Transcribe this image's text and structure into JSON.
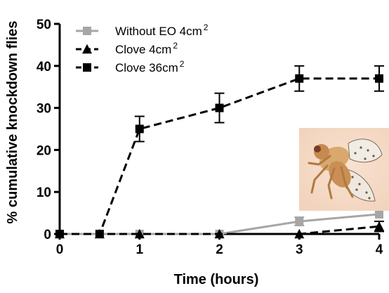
{
  "chart_data": {
    "type": "line",
    "xlabel": "Time (hours)",
    "ylabel": "% cumulative knockdown flies",
    "xlim": [
      0,
      4
    ],
    "ylim": [
      0,
      50
    ],
    "x_ticks": [
      0,
      1,
      2,
      3,
      4
    ],
    "y_ticks": [
      0,
      10,
      20,
      30,
      40,
      50
    ],
    "grid": false,
    "legend_position": "top-left",
    "series": [
      {
        "name": "Without EO 4cm",
        "name_superscript": "2",
        "color": "#a6a6a6",
        "line_style": "solid",
        "marker": "square",
        "x": [
          0,
          0.5,
          1,
          2,
          3,
          4
        ],
        "y": [
          0,
          0,
          0,
          0,
          3,
          4.7
        ],
        "error": [
          0,
          0,
          0,
          0,
          1,
          0
        ]
      },
      {
        "name": "Clove 4cm",
        "name_superscript": "2",
        "color": "#000000",
        "line_style": "dashed",
        "marker": "triangle",
        "x": [
          0,
          0.5,
          1,
          2,
          3,
          4
        ],
        "y": [
          0,
          0,
          0,
          0,
          0,
          1.8
        ],
        "error": [
          0,
          0,
          0,
          0,
          0,
          1.2
        ]
      },
      {
        "name": "Clove 36cm",
        "name_superscript": "2",
        "color": "#000000",
        "line_style": "dashed",
        "marker": "square",
        "x": [
          0,
          0.5,
          1,
          2,
          3,
          4
        ],
        "y": [
          0,
          0,
          25,
          30,
          37,
          37
        ],
        "error": [
          0,
          0,
          3,
          3.5,
          3,
          3
        ]
      }
    ],
    "inset_image": {
      "subject": "fly-photo",
      "background_color": "#f2d3bc"
    }
  }
}
